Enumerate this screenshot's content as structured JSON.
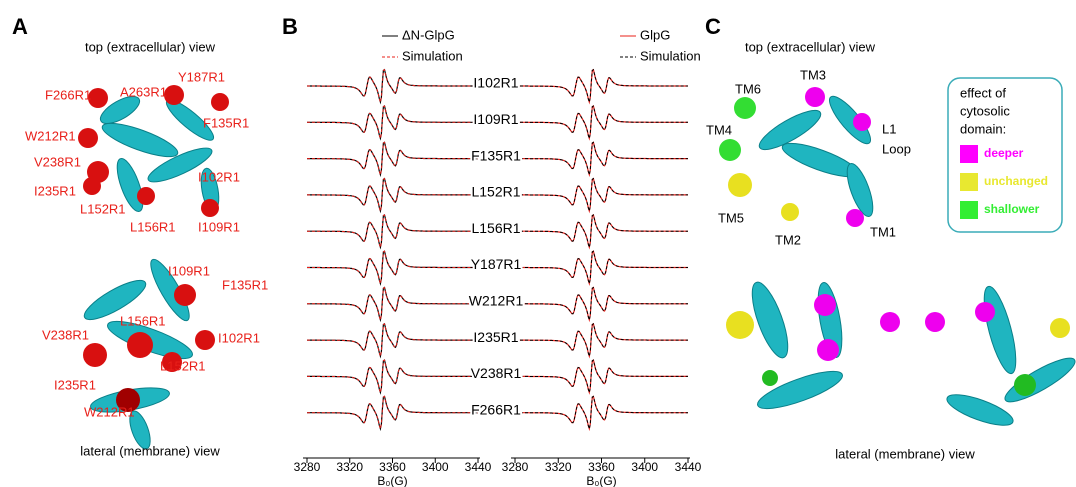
{
  "panel_a": {
    "label": "A",
    "top_title": "top (extracellular) view",
    "top_residues": [
      "F266R1",
      "A263R1",
      "Y187R1",
      "W212R1",
      "F135R1",
      "V238R1",
      "I102R1",
      "I235R1",
      "L152R1",
      "L156R1",
      "I109R1"
    ],
    "lateral_residues": [
      "I109R1",
      "F135R1",
      "V238R1",
      "L156R1",
      "I102R1",
      "L152R1",
      "I235R1",
      "W212R1"
    ],
    "lateral_title": "lateral (membrane) view"
  },
  "panel_b": {
    "label": "B",
    "left_legend": [
      "ΔN-GlpG",
      "Simulation"
    ],
    "right_legend": [
      "GlpG",
      "Simulation"
    ],
    "mutants": [
      "I102R1",
      "I109R1",
      "F135R1",
      "L152R1",
      "L156R1",
      "Y187R1",
      "W212R1",
      "I235R1",
      "V238R1",
      "F266R1"
    ],
    "xlim": [
      3280,
      3440
    ],
    "xticks": [
      3280,
      3320,
      3360,
      3400,
      3440
    ],
    "xlabel": "B₀(G)"
  },
  "panel_c": {
    "label": "C",
    "top_title": "top (extracellular) view",
    "tm_labels": [
      "TM6",
      "TM3",
      "TM4",
      "L1",
      "Loop",
      "TM5",
      "TM2",
      "TM1"
    ],
    "legend_title": [
      "effect of",
      "cytosolic",
      "domain:"
    ],
    "legend_items": [
      {
        "name": "deeper",
        "color": "#ff00ff"
      },
      {
        "name": "unchanged",
        "color": "#e8e830"
      },
      {
        "name": "shallower",
        "color": "#33ee33"
      }
    ],
    "lateral_title": "lateral (membrane) view"
  }
}
